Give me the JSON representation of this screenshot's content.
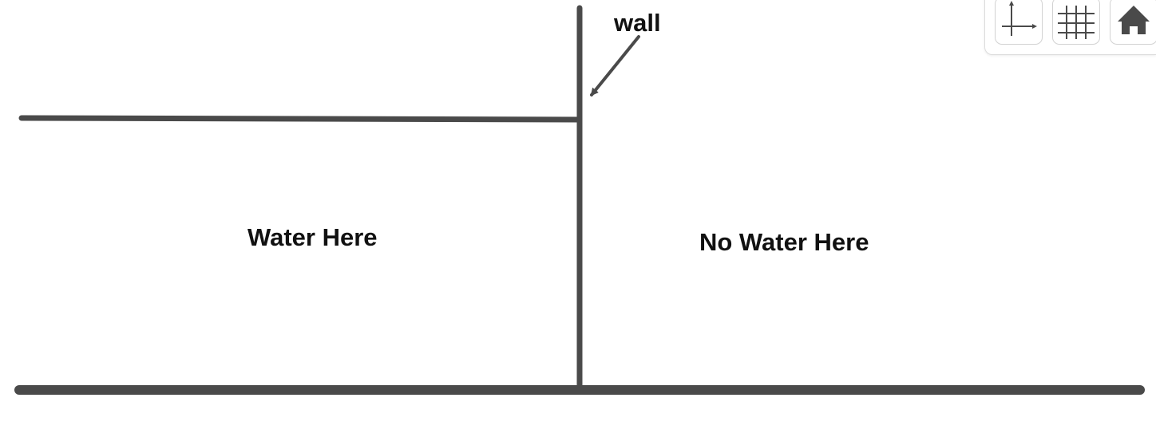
{
  "diagram": {
    "labels": {
      "wall": "wall",
      "water_here": "Water Here",
      "no_water_here": "No Water Here"
    },
    "colors": {
      "line": "#4a4a4a",
      "text": "#111111"
    }
  },
  "toolbar": {
    "buttons": [
      {
        "name": "axes-toggle-button",
        "icon": "axes-icon"
      },
      {
        "name": "grid-toggle-button",
        "icon": "grid-icon"
      },
      {
        "name": "home-button",
        "icon": "home-icon"
      }
    ]
  }
}
